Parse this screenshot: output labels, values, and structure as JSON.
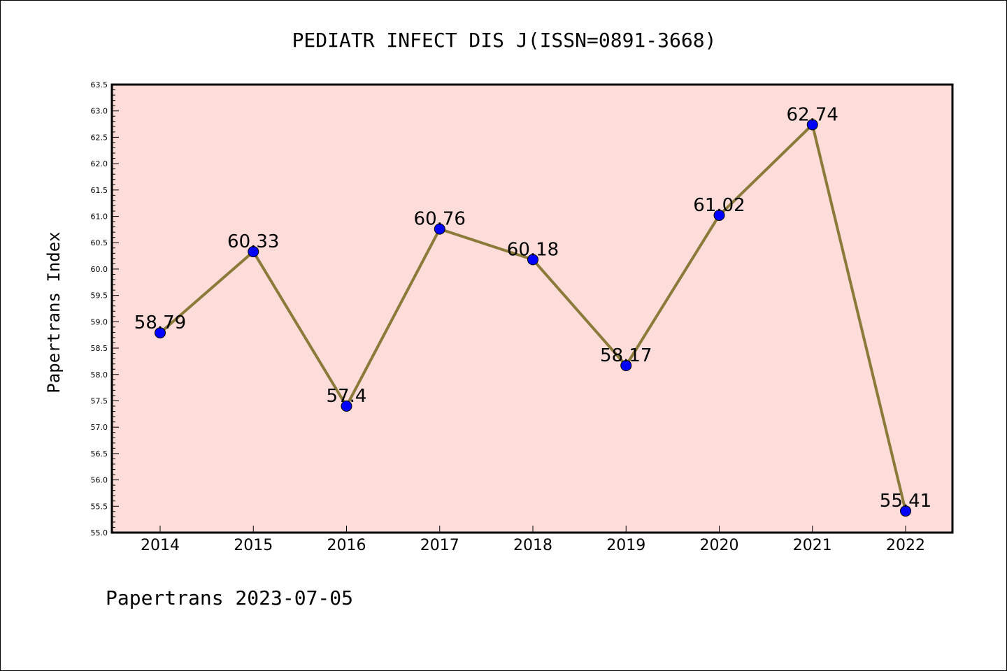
{
  "colors": {
    "plot_background": "#fddcd9",
    "line": "#8b7a3a",
    "marker": "#0000ff",
    "axis": "#000000"
  },
  "footer": {
    "text": "Papertrans 2023-07-05"
  },
  "chart_data": {
    "type": "line",
    "title": "PEDIATR INFECT DIS J(ISSN=0891-3668)",
    "xlabel": "",
    "ylabel": "Papertrans Index",
    "categories": [
      "2014",
      "2015",
      "2016",
      "2017",
      "2018",
      "2019",
      "2020",
      "2021",
      "2022"
    ],
    "series": [
      {
        "values": [
          58.79,
          60.33,
          57.4,
          60.76,
          60.18,
          58.17,
          61.02,
          62.74,
          55.41
        ]
      }
    ],
    "data_labels": [
      "58.79",
      "60.33",
      "57.4",
      "60.76",
      "60.18",
      "58.17",
      "61.02",
      "62.74",
      "55.41"
    ],
    "ylim": [
      55.0,
      63.5
    ],
    "yticks": [
      "55.0",
      "55.5",
      "56.0",
      "56.5",
      "57.0",
      "57.5",
      "58.0",
      "58.5",
      "59.0",
      "59.5",
      "60.0",
      "60.5",
      "61.0",
      "61.5",
      "62.0",
      "62.5",
      "63.0",
      "63.5"
    ],
    "grid": false,
    "legend": "none"
  }
}
